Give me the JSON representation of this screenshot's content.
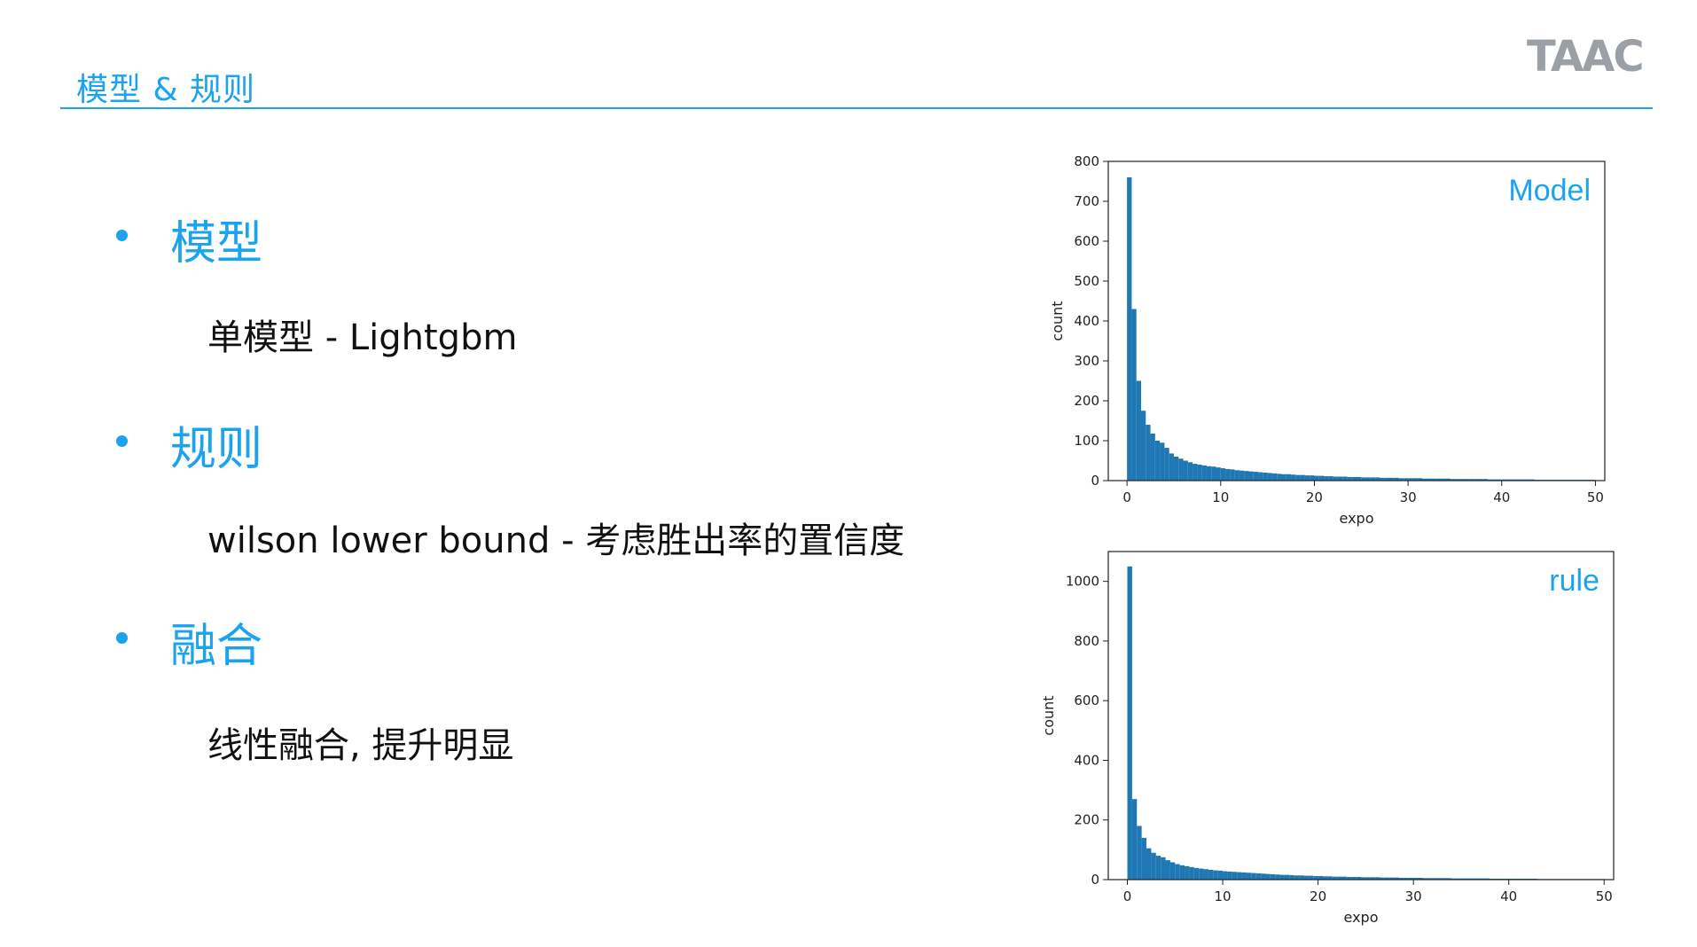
{
  "header": {
    "title": "模型 & 规则",
    "logo_text": "TAAC"
  },
  "bullets": [
    {
      "title": "模型",
      "detail": "单模型 - Lightgbm"
    },
    {
      "title": "规则",
      "detail": "wilson lower bound - 考虑胜出率的置信度"
    },
    {
      "title": "融合",
      "detail": "线性融合, 提升明显"
    }
  ],
  "colors": {
    "accent": "#1ba3ef",
    "bar": "#1f77b4"
  },
  "chart_data": [
    {
      "type": "bar",
      "tag": "Model",
      "xlabel": "expo",
      "ylabel": "count",
      "xlim": [
        -2,
        51
      ],
      "ylim": [
        0,
        800
      ],
      "xticks": [
        0,
        10,
        20,
        30,
        40,
        50
      ],
      "yticks": [
        0,
        100,
        200,
        300,
        400,
        500,
        600,
        700,
        800
      ],
      "bin_width": 0.5,
      "bin_start": 0,
      "values": [
        760,
        430,
        250,
        175,
        140,
        118,
        100,
        95,
        82,
        68,
        60,
        55,
        50,
        46,
        42,
        40,
        38,
        36,
        35,
        33,
        31,
        29,
        28,
        26,
        25,
        24,
        23,
        22,
        21,
        20,
        19,
        18,
        17,
        16,
        16,
        15,
        14,
        14,
        13,
        13,
        12,
        12,
        11,
        11,
        10,
        10,
        10,
        9,
        9,
        9,
        8,
        8,
        8,
        8,
        7,
        7,
        7,
        7,
        6,
        6,
        6,
        6,
        6,
        5,
        5,
        5,
        5,
        5,
        5,
        4,
        4,
        4,
        4,
        4,
        4,
        4,
        4,
        3,
        3,
        3,
        3,
        3,
        3,
        3,
        3,
        3,
        3,
        2,
        2,
        2,
        2,
        2,
        2,
        2,
        2,
        2,
        2,
        2,
        2,
        2
      ]
    },
    {
      "type": "bar",
      "tag": "rule",
      "xlabel": "expo",
      "ylabel": "count",
      "xlim": [
        -2,
        51
      ],
      "ylim": [
        0,
        1100
      ],
      "xticks": [
        0,
        10,
        20,
        30,
        40,
        50
      ],
      "yticks": [
        0,
        200,
        400,
        600,
        800,
        1000
      ],
      "bin_width": 0.5,
      "bin_start": 0,
      "values": [
        1050,
        270,
        180,
        140,
        105,
        90,
        80,
        75,
        65,
        58,
        52,
        48,
        45,
        42,
        39,
        37,
        35,
        33,
        31,
        30,
        28,
        27,
        26,
        25,
        24,
        23,
        22,
        21,
        20,
        19,
        18,
        17,
        16,
        16,
        15,
        14,
        14,
        13,
        13,
        12,
        12,
        11,
        11,
        10,
        10,
        10,
        9,
        9,
        9,
        8,
        8,
        8,
        8,
        7,
        7,
        7,
        7,
        6,
        6,
        6,
        6,
        6,
        5,
        5,
        5,
        5,
        5,
        5,
        4,
        4,
        4,
        4,
        4,
        4,
        4,
        4,
        3,
        3,
        3,
        3,
        3,
        3,
        3,
        3,
        3,
        3,
        2,
        2,
        2,
        2,
        2,
        2,
        2,
        2,
        2,
        2,
        2,
        2,
        2,
        2
      ]
    }
  ]
}
